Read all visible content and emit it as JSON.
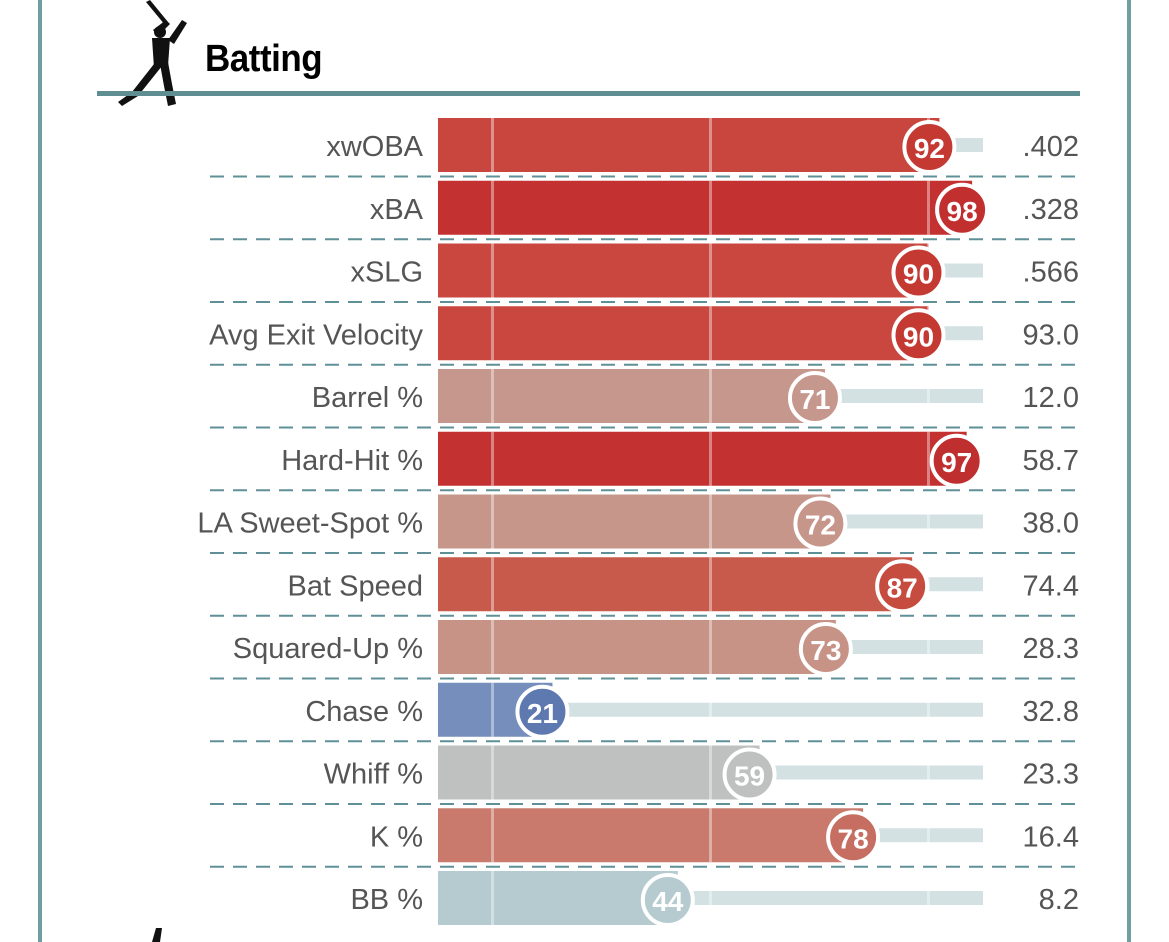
{
  "section": {
    "title": "Batting",
    "icon": "batter-silhouette-icon"
  },
  "colors": {
    "frame": "#6f9fa3",
    "rule": "#5e8e92",
    "dash": "#5f9098",
    "track": "#d3e1e3",
    "label_text": "#555555"
  },
  "chart_data": {
    "type": "bar",
    "orientation": "horizontal",
    "title": "Batting",
    "xlim": [
      0,
      100
    ],
    "categories": [
      "xwOBA",
      "xBA",
      "xSLG",
      "Avg Exit Velocity",
      "Barrel %",
      "Hard-Hit %",
      "LA Sweet-Spot %",
      "Bat Speed",
      "Squared-Up %",
      "Chase %",
      "Whiff %",
      "K %",
      "BB %"
    ],
    "percentiles": [
      92,
      98,
      90,
      90,
      71,
      97,
      72,
      87,
      73,
      21,
      59,
      78,
      44
    ],
    "stat_values": [
      ".402",
      ".328",
      ".566",
      "93.0",
      "12.0",
      "58.7",
      "38.0",
      "74.4",
      "28.3",
      "32.8",
      "23.3",
      "16.4",
      "8.2"
    ],
    "bar_colors": [
      "#c9463e",
      "#c43131",
      "#c9473f",
      "#c9473f",
      "#c6978c",
      "#c43131",
      "#c6968b",
      "#c85a4b",
      "#c79386",
      "#758ebc",
      "#bfc0c0",
      "#c97a6d",
      "#b5cbd0"
    ],
    "circle_colors": [
      "#c43a33",
      "#c12f2f",
      "#c43a33",
      "#c43a33",
      "#c6978c",
      "#bf2f2f",
      "#c6968b",
      "#c64c40",
      "#c79386",
      "#5e78b0",
      "#bfc0c0",
      "#c66e61",
      "#b5cbd0"
    ],
    "reference_lines": [
      10,
      50,
      90
    ],
    "grid": false
  }
}
